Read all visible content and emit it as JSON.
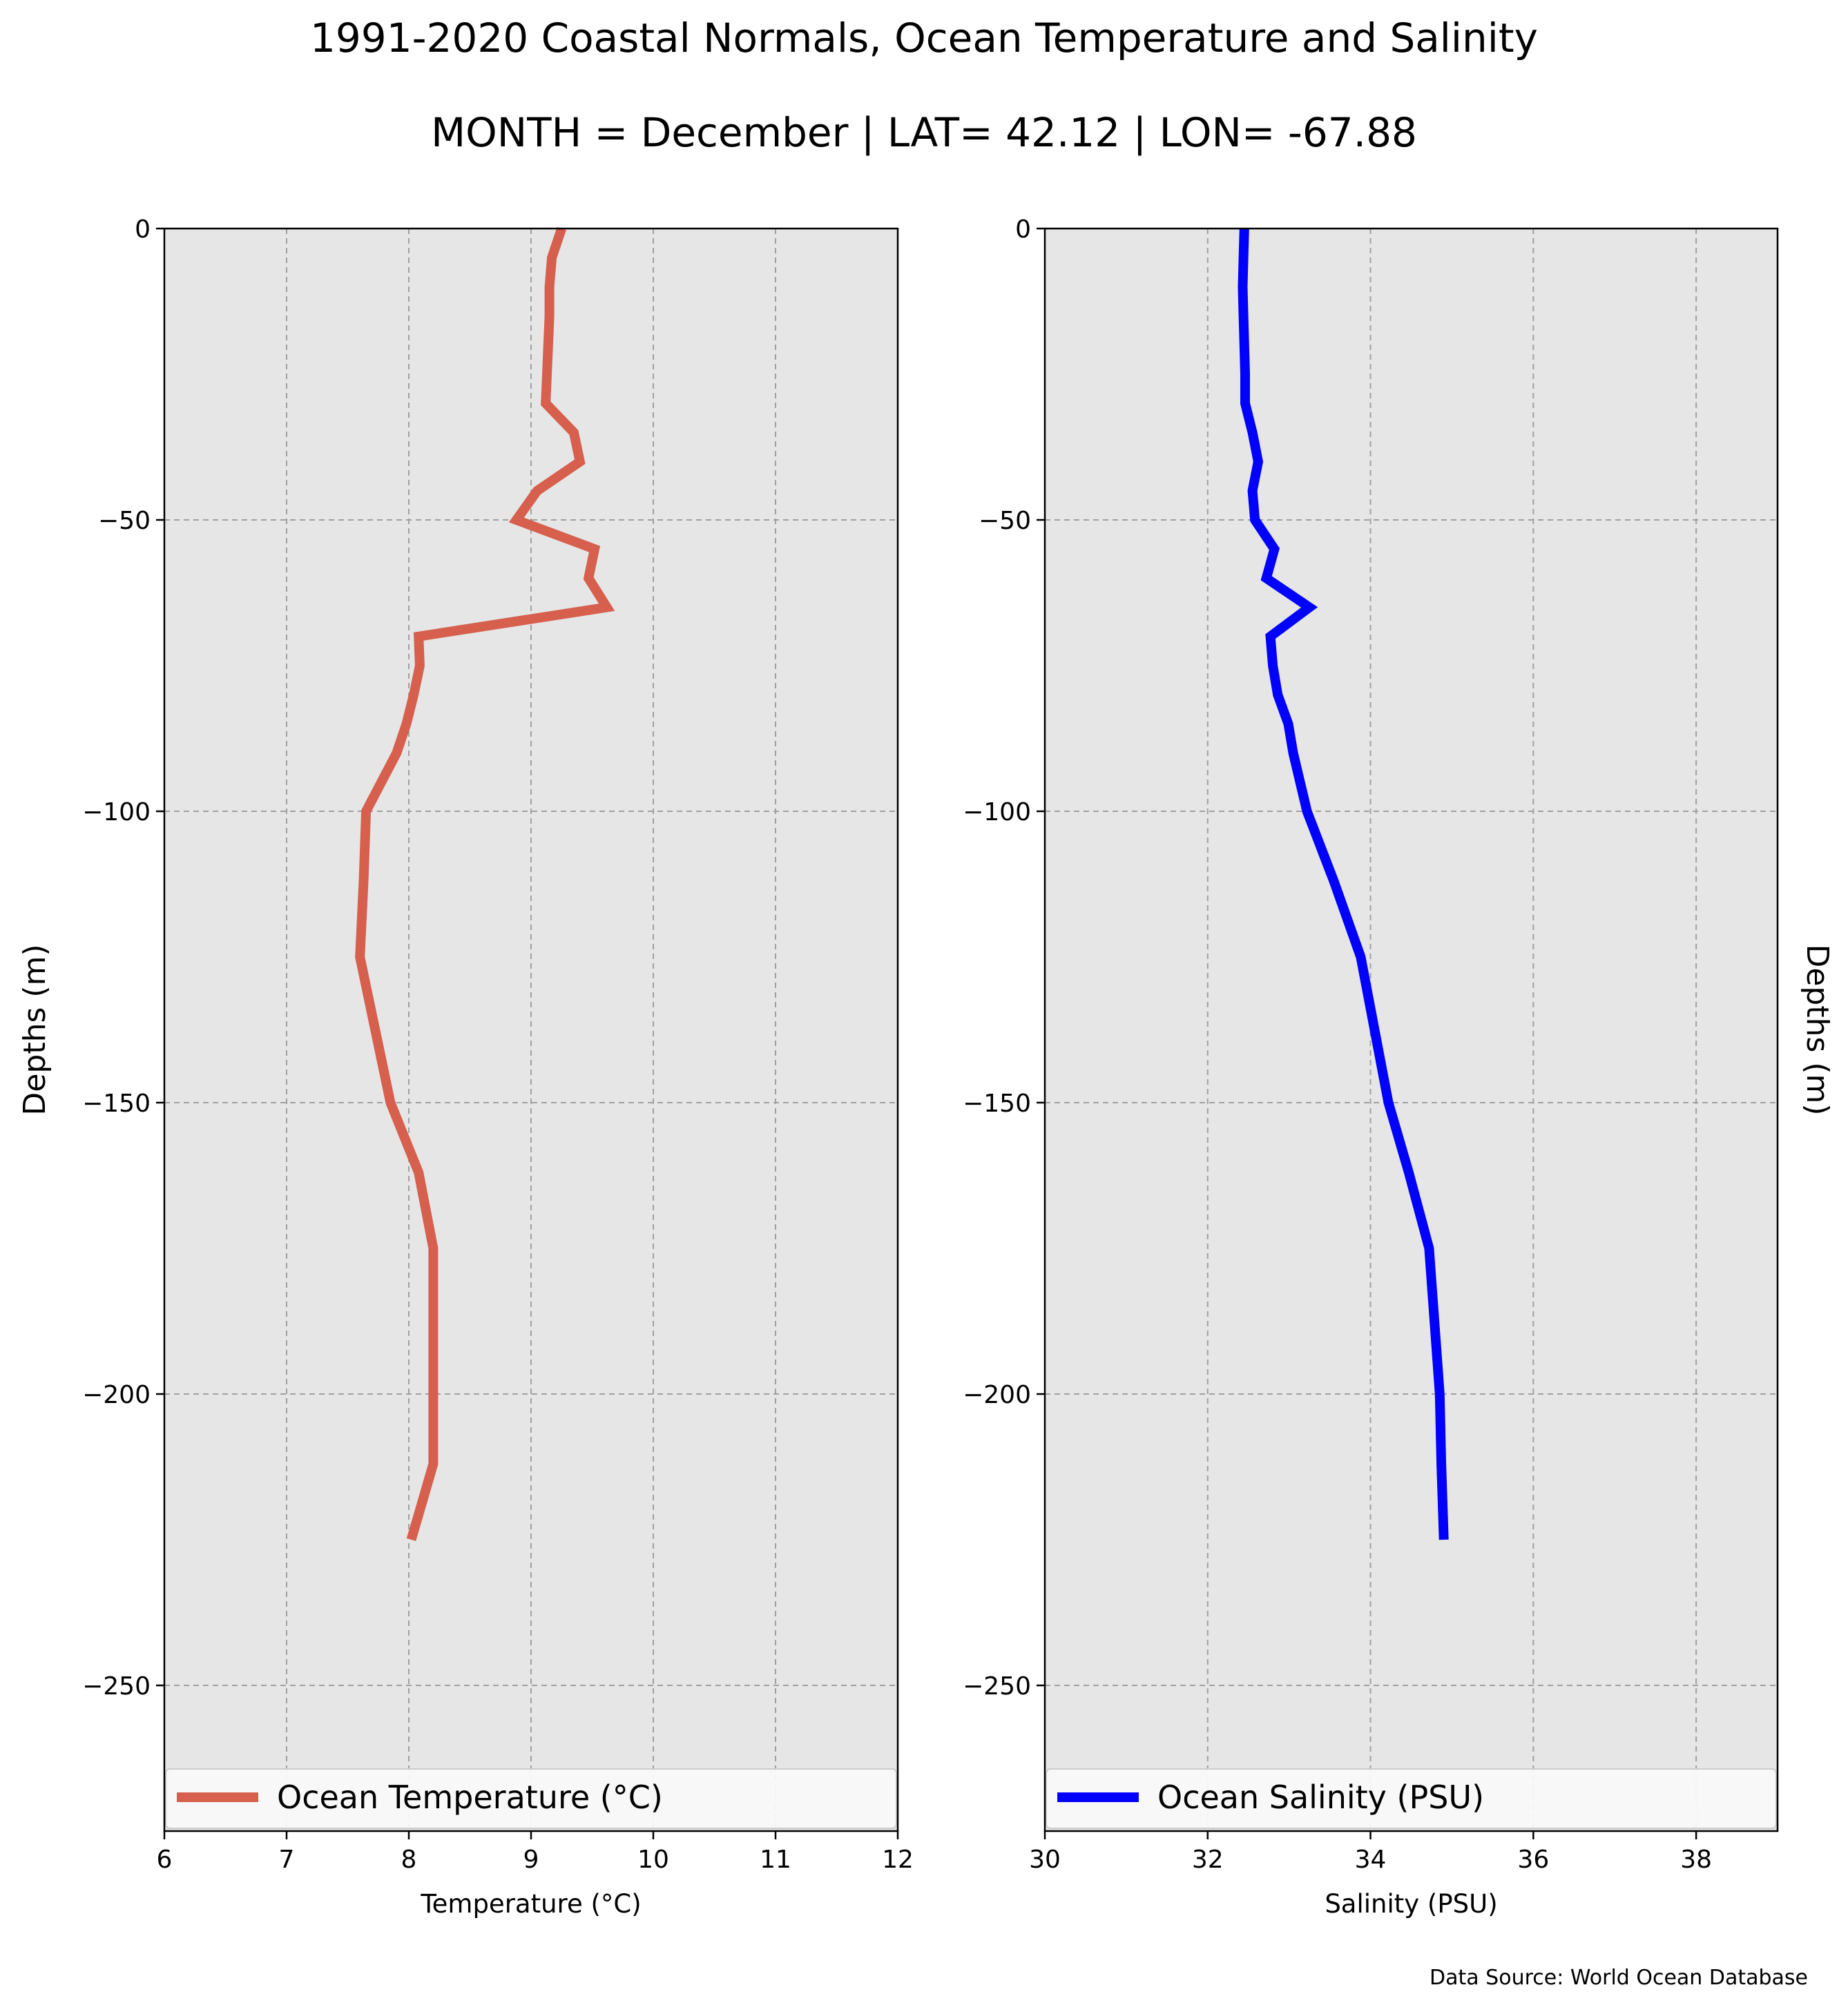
{
  "title_line1": "1991-2020 Coastal Normals, Ocean Temperature and Salinity",
  "title_line2": "MONTH = December | LAT= 42.12 | LON= -67.88",
  "source": "Data Source: World Ocean Database",
  "chart_data": [
    {
      "type": "line",
      "title": "",
      "xlabel": "Temperature (°C)",
      "ylabel": "Depths (m)",
      "ylabel_side": "left",
      "xlim": [
        6,
        12
      ],
      "ylim": [
        -275,
        0
      ],
      "xticks": [
        6,
        7,
        8,
        9,
        10,
        11,
        12
      ],
      "yticks": [
        0,
        -50,
        -100,
        -150,
        -200,
        -250
      ],
      "grid": true,
      "legend_position": "bottom",
      "background": "#e6e6e6",
      "series": [
        {
          "name": "Ocean Temperature (°C)",
          "color": "#d65f4d",
          "x": [
            9.25,
            9.17,
            9.15,
            9.15,
            9.14,
            9.13,
            9.12,
            9.35,
            9.4,
            9.05,
            8.88,
            9.52,
            9.47,
            9.62,
            8.08,
            8.09,
            8.04,
            7.98,
            7.9,
            7.65,
            7.63,
            7.6,
            7.85,
            8.08,
            8.2,
            8.2,
            8.2,
            8.02
          ],
          "y": [
            0,
            -5,
            -10,
            -15,
            -20,
            -25,
            -30,
            -35,
            -40,
            -45,
            -50,
            -55,
            -60,
            -65,
            -70,
            -75,
            -80,
            -85,
            -90,
            -100,
            -112,
            -125,
            -150,
            -162,
            -175,
            -200,
            -212,
            -225
          ]
        }
      ]
    },
    {
      "type": "line",
      "title": "",
      "xlabel": "Salinity (PSU)",
      "ylabel": "Depths (m)",
      "ylabel_side": "right",
      "xlim": [
        30,
        39
      ],
      "ylim": [
        -275,
        0
      ],
      "xticks": [
        30,
        32,
        34,
        36,
        38
      ],
      "yticks": [
        0,
        -50,
        -100,
        -150,
        -200,
        -250
      ],
      "grid": true,
      "legend_position": "bottom",
      "background": "#e6e6e6",
      "series": [
        {
          "name": "Ocean Salinity (PSU)",
          "color": "#0000ff",
          "x": [
            32.45,
            32.44,
            32.43,
            32.44,
            32.45,
            32.46,
            32.46,
            32.55,
            32.62,
            32.55,
            32.58,
            32.82,
            32.72,
            33.25,
            32.77,
            32.8,
            32.86,
            32.99,
            33.05,
            33.22,
            33.55,
            33.88,
            34.22,
            34.47,
            34.72,
            34.85,
            34.87,
            34.9
          ],
          "y": [
            0,
            -5,
            -10,
            -15,
            -20,
            -25,
            -30,
            -35,
            -40,
            -45,
            -50,
            -55,
            -60,
            -65,
            -70,
            -75,
            -80,
            -85,
            -90,
            -100,
            -112,
            -125,
            -150,
            -162,
            -175,
            -200,
            -212,
            -225
          ]
        }
      ]
    }
  ]
}
